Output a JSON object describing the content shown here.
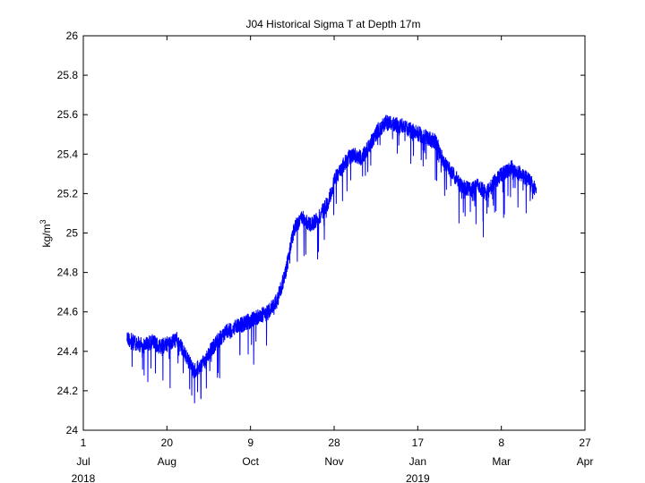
{
  "chart_data": {
    "type": "line",
    "title": "J04 Historical Sigma T at Depth 17m",
    "ylabel_base": "kg/m",
    "ylabel_superscript": "3",
    "ylim": [
      24,
      26
    ],
    "y_ticks": [
      "24",
      "24.2",
      "24.4",
      "24.6",
      "24.8",
      "25",
      "25.2",
      "25.4",
      "25.6",
      "25.8",
      "26"
    ],
    "x_axis": {
      "start": "2018-07-01",
      "end": "2019-04-27",
      "ticks": [
        {
          "date": "2018-07-01",
          "day": "1",
          "month": "Jul",
          "year": "2018"
        },
        {
          "date": "2018-08-20",
          "day": "20",
          "month": "Aug",
          "year": ""
        },
        {
          "date": "2018-10-09",
          "day": "9",
          "month": "Oct",
          "year": ""
        },
        {
          "date": "2018-11-28",
          "day": "28",
          "month": "Nov",
          "year": ""
        },
        {
          "date": "2019-01-17",
          "day": "17",
          "month": "Jan",
          "year": "2019"
        },
        {
          "date": "2019-03-08",
          "day": "8",
          "month": "Mar",
          "year": ""
        },
        {
          "date": "2019-04-27",
          "day": "27",
          "month": "Apr",
          "year": ""
        }
      ]
    },
    "grid": false,
    "line_color": "#0000ff",
    "series": [
      {
        "x": [
          "2018-07-27",
          "2018-08-01",
          "2018-08-06",
          "2018-08-11",
          "2018-08-16",
          "2018-08-21",
          "2018-08-26",
          "2018-08-31",
          "2018-09-05",
          "2018-09-10",
          "2018-09-15",
          "2018-09-20",
          "2018-09-25",
          "2018-09-30",
          "2018-10-05",
          "2018-10-10",
          "2018-10-15",
          "2018-10-20",
          "2018-10-25",
          "2018-10-30",
          "2018-11-04",
          "2018-11-09",
          "2018-11-14",
          "2018-11-19",
          "2018-11-24",
          "2018-11-29",
          "2018-12-04",
          "2018-12-09",
          "2018-12-14",
          "2018-12-19",
          "2018-12-24",
          "2018-12-29",
          "2019-01-03",
          "2019-01-08",
          "2019-01-13",
          "2019-01-18",
          "2019-01-23",
          "2019-01-28",
          "2019-02-02",
          "2019-02-07",
          "2019-02-12",
          "2019-02-17",
          "2019-02-22",
          "2019-02-27",
          "2019-03-04",
          "2019-03-09",
          "2019-03-14",
          "2019-03-19",
          "2019-03-24",
          "2019-03-29"
        ],
        "y": [
          24.47,
          24.44,
          24.43,
          24.45,
          24.42,
          24.44,
          24.46,
          24.38,
          24.3,
          24.33,
          24.4,
          24.46,
          24.5,
          24.52,
          24.54,
          24.56,
          24.58,
          24.6,
          24.66,
          24.8,
          25.02,
          25.08,
          25.04,
          25.08,
          25.15,
          25.28,
          25.35,
          25.4,
          25.38,
          25.44,
          25.52,
          25.56,
          25.55,
          25.54,
          25.52,
          25.5,
          25.48,
          25.46,
          25.35,
          25.3,
          25.24,
          25.22,
          25.24,
          25.2,
          25.26,
          25.3,
          25.33,
          25.3,
          25.27,
          25.22
        ]
      }
    ]
  }
}
